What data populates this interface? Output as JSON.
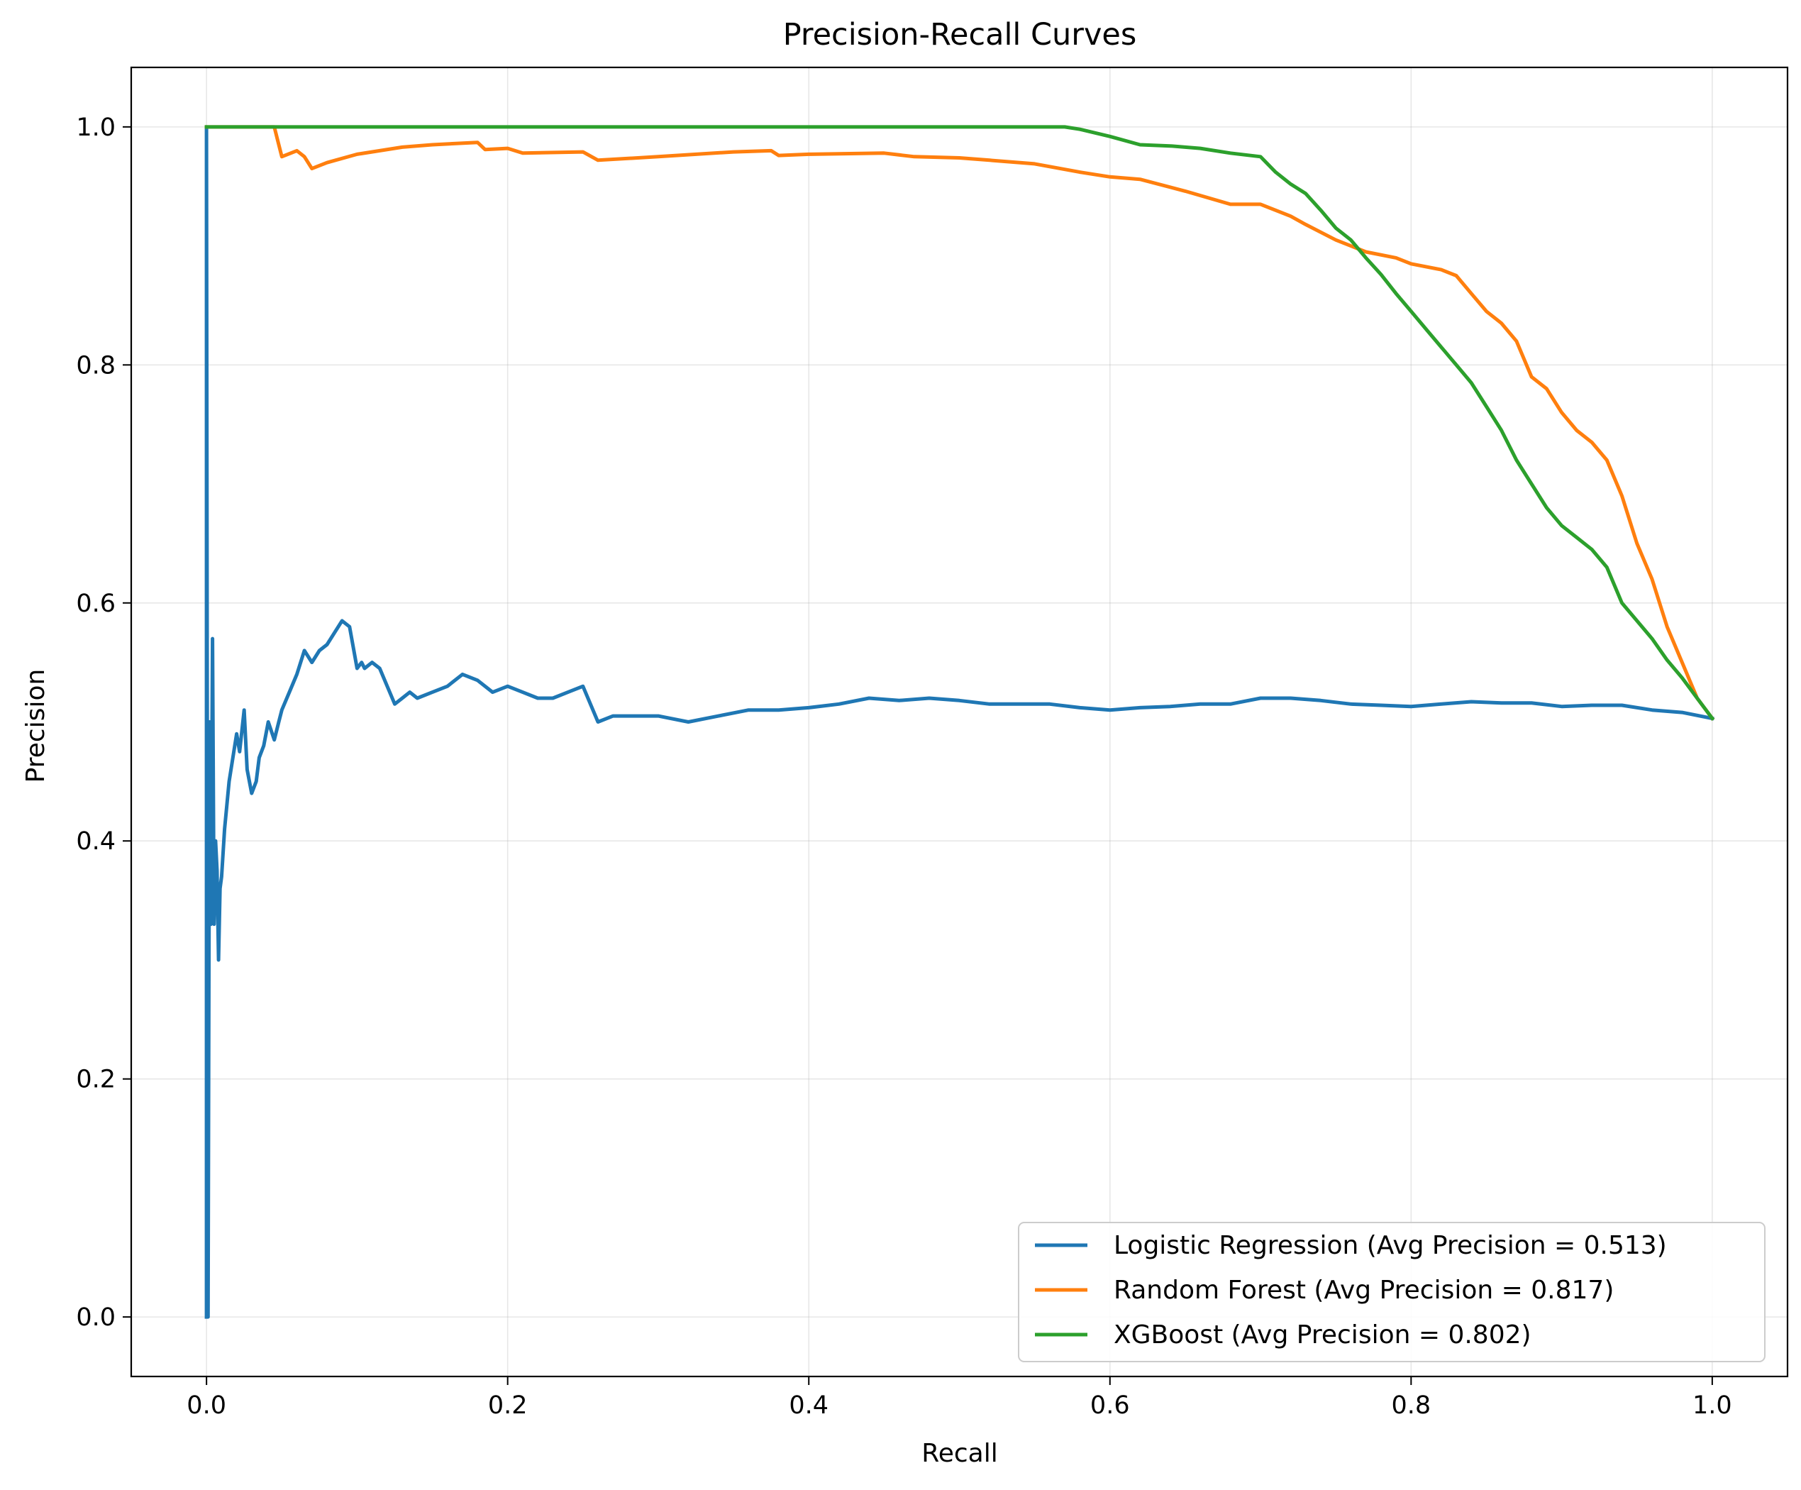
{
  "chart_data": {
    "type": "line",
    "title": "Precision-Recall Curves",
    "xlabel": "Recall",
    "ylabel": "Precision",
    "xlim": [
      -0.05,
      1.05
    ],
    "ylim": [
      -0.05,
      1.05
    ],
    "xticks": [
      0.0,
      0.2,
      0.4,
      0.6,
      0.8,
      1.0
    ],
    "xtick_labels": [
      "0.0",
      "0.2",
      "0.4",
      "0.6",
      "0.8",
      "1.0"
    ],
    "yticks": [
      0.0,
      0.2,
      0.4,
      0.6,
      0.8,
      1.0
    ],
    "ytick_labels": [
      "0.0",
      "0.2",
      "0.4",
      "0.6",
      "0.8",
      "1.0"
    ],
    "grid": true,
    "legend_position": "lower-right",
    "series": [
      {
        "name": "Logistic Regression (Avg Precision = 0.513)",
        "color": "#1f77b4",
        "x": [
          0.0,
          0.0,
          0.001,
          0.002,
          0.003,
          0.004,
          0.005,
          0.006,
          0.007,
          0.008,
          0.009,
          0.01,
          0.012,
          0.015,
          0.02,
          0.022,
          0.025,
          0.027,
          0.03,
          0.033,
          0.035,
          0.038,
          0.041,
          0.045,
          0.048,
          0.05,
          0.055,
          0.06,
          0.065,
          0.07,
          0.075,
          0.08,
          0.085,
          0.09,
          0.095,
          0.1,
          0.103,
          0.105,
          0.11,
          0.115,
          0.12,
          0.125,
          0.13,
          0.135,
          0.14,
          0.15,
          0.16,
          0.17,
          0.18,
          0.19,
          0.2,
          0.21,
          0.22,
          0.23,
          0.24,
          0.25,
          0.26,
          0.27,
          0.28,
          0.3,
          0.32,
          0.34,
          0.36,
          0.38,
          0.4,
          0.42,
          0.44,
          0.46,
          0.48,
          0.5,
          0.52,
          0.54,
          0.56,
          0.58,
          0.6,
          0.62,
          0.64,
          0.66,
          0.68,
          0.7,
          0.72,
          0.74,
          0.76,
          0.78,
          0.8,
          0.82,
          0.84,
          0.86,
          0.88,
          0.9,
          0.92,
          0.94,
          0.96,
          0.98,
          1.0
        ],
        "y": [
          0.0,
          1.0,
          0.0,
          0.5,
          0.33,
          0.57,
          0.33,
          0.4,
          0.375,
          0.3,
          0.36,
          0.37,
          0.41,
          0.45,
          0.49,
          0.475,
          0.51,
          0.46,
          0.44,
          0.45,
          0.47,
          0.48,
          0.5,
          0.485,
          0.5,
          0.51,
          0.525,
          0.54,
          0.56,
          0.55,
          0.56,
          0.565,
          0.575,
          0.585,
          0.58,
          0.545,
          0.55,
          0.545,
          0.55,
          0.545,
          0.53,
          0.515,
          0.52,
          0.525,
          0.52,
          0.525,
          0.53,
          0.54,
          0.535,
          0.525,
          0.53,
          0.525,
          0.52,
          0.52,
          0.525,
          0.53,
          0.5,
          0.505,
          0.505,
          0.505,
          0.5,
          0.505,
          0.51,
          0.51,
          0.512,
          0.515,
          0.52,
          0.518,
          0.52,
          0.518,
          0.515,
          0.515,
          0.515,
          0.512,
          0.51,
          0.512,
          0.513,
          0.515,
          0.515,
          0.52,
          0.52,
          0.518,
          0.515,
          0.514,
          0.513,
          0.515,
          0.517,
          0.516,
          0.516,
          0.513,
          0.514,
          0.514,
          0.51,
          0.508,
          0.503
        ]
      },
      {
        "name": "Random Forest (Avg Precision = 0.817)",
        "color": "#ff7f0e",
        "x": [
          0.0,
          0.045,
          0.047,
          0.05,
          0.06,
          0.065,
          0.07,
          0.08,
          0.1,
          0.13,
          0.15,
          0.18,
          0.185,
          0.2,
          0.21,
          0.25,
          0.26,
          0.3,
          0.35,
          0.375,
          0.38,
          0.4,
          0.45,
          0.47,
          0.5,
          0.52,
          0.55,
          0.58,
          0.6,
          0.62,
          0.65,
          0.68,
          0.7,
          0.72,
          0.73,
          0.75,
          0.77,
          0.79,
          0.8,
          0.82,
          0.83,
          0.84,
          0.85,
          0.86,
          0.87,
          0.88,
          0.89,
          0.9,
          0.91,
          0.92,
          0.93,
          0.94,
          0.95,
          0.96,
          0.97,
          0.98,
          0.99,
          1.0
        ],
        "y": [
          1.0,
          1.0,
          0.99,
          0.975,
          0.98,
          0.975,
          0.965,
          0.97,
          0.977,
          0.983,
          0.985,
          0.987,
          0.981,
          0.982,
          0.978,
          0.979,
          0.972,
          0.975,
          0.979,
          0.98,
          0.976,
          0.977,
          0.978,
          0.975,
          0.974,
          0.972,
          0.969,
          0.962,
          0.958,
          0.956,
          0.946,
          0.935,
          0.935,
          0.925,
          0.918,
          0.905,
          0.895,
          0.89,
          0.885,
          0.88,
          0.875,
          0.86,
          0.845,
          0.835,
          0.82,
          0.79,
          0.78,
          0.76,
          0.745,
          0.735,
          0.72,
          0.69,
          0.65,
          0.62,
          0.58,
          0.55,
          0.52,
          0.503
        ]
      },
      {
        "name": "XGBoost (Avg Precision = 0.802)",
        "color": "#2ca02c",
        "x": [
          0.0,
          0.57,
          0.58,
          0.6,
          0.62,
          0.64,
          0.66,
          0.68,
          0.7,
          0.71,
          0.72,
          0.73,
          0.74,
          0.75,
          0.76,
          0.77,
          0.78,
          0.79,
          0.8,
          0.81,
          0.82,
          0.83,
          0.84,
          0.85,
          0.86,
          0.87,
          0.88,
          0.89,
          0.9,
          0.91,
          0.92,
          0.93,
          0.94,
          0.95,
          0.96,
          0.97,
          0.98,
          0.99,
          1.0
        ],
        "y": [
          1.0,
          1.0,
          0.998,
          0.992,
          0.985,
          0.984,
          0.982,
          0.978,
          0.975,
          0.962,
          0.952,
          0.944,
          0.93,
          0.915,
          0.905,
          0.89,
          0.876,
          0.86,
          0.845,
          0.83,
          0.815,
          0.8,
          0.785,
          0.765,
          0.745,
          0.72,
          0.7,
          0.68,
          0.665,
          0.655,
          0.645,
          0.63,
          0.6,
          0.585,
          0.57,
          0.552,
          0.537,
          0.52,
          0.503
        ]
      }
    ]
  }
}
